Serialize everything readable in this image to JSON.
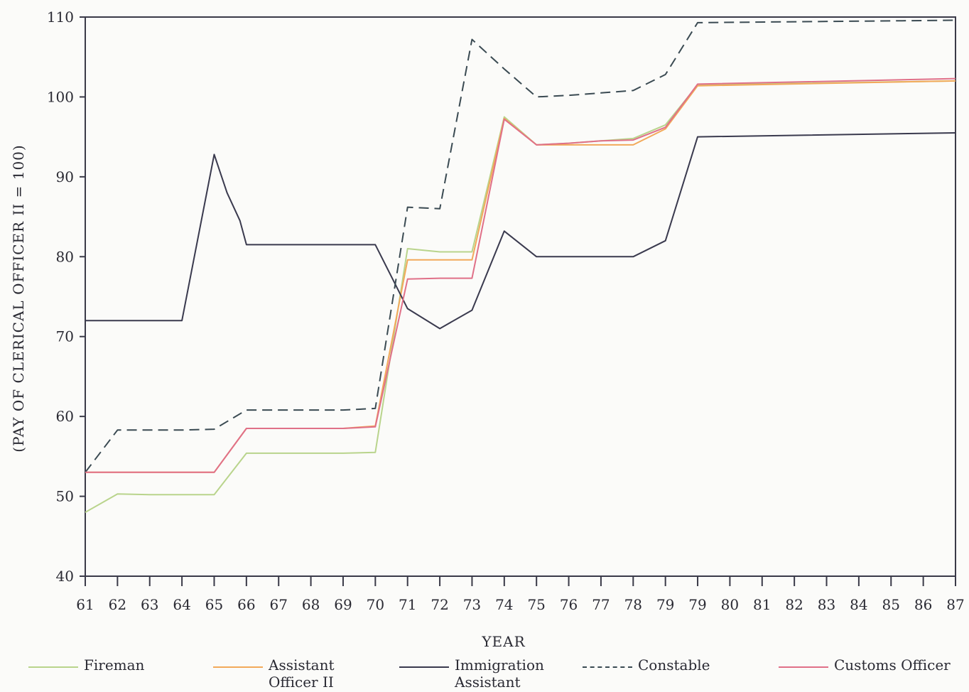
{
  "chart_data": {
    "type": "line",
    "title": "",
    "xlabel": "YEAR",
    "ylabel": "(PAY OF CLERICAL OFFICER II = 100)",
    "xlim": [
      61,
      87
    ],
    "ylim": [
      40,
      110
    ],
    "x_ticks": [
      "61",
      "62",
      "63",
      "64",
      "65",
      "66",
      "67",
      "68",
      "69",
      "70",
      "71",
      "72",
      "73",
      "74",
      "75",
      "76",
      "77",
      "78",
      "79",
      "79",
      "80",
      "81",
      "82",
      "83",
      "84",
      "85",
      "86",
      "87"
    ],
    "y_ticks": [
      40,
      50,
      60,
      70,
      80,
      90,
      100,
      110
    ],
    "grid": false,
    "legend_position": "bottom",
    "series": [
      {
        "name": "Fireman",
        "color": "#b9d48c",
        "style": "solid",
        "points": [
          [
            0,
            48
          ],
          [
            1,
            50.3
          ],
          [
            2,
            50.2
          ],
          [
            3,
            50.2
          ],
          [
            4,
            50.2
          ],
          [
            5,
            55.4
          ],
          [
            6,
            55.4
          ],
          [
            7,
            55.4
          ],
          [
            8,
            55.4
          ],
          [
            9,
            55.5
          ],
          [
            10,
            81
          ],
          [
            11,
            80.6
          ],
          [
            12,
            80.6
          ],
          [
            13,
            97.5
          ],
          [
            14,
            94
          ],
          [
            15,
            94.2
          ],
          [
            16,
            94.5
          ],
          [
            17,
            94.8
          ],
          [
            18,
            96.5
          ],
          [
            19,
            101.5
          ],
          [
            27,
            102
          ]
        ]
      },
      {
        "name": "Assistant Officer II",
        "color": "#f2a95a",
        "style": "solid",
        "points": [
          [
            0,
            53
          ],
          [
            1,
            53
          ],
          [
            2,
            53
          ],
          [
            3,
            53
          ],
          [
            4,
            53
          ],
          [
            5,
            58.5
          ],
          [
            6,
            58.5
          ],
          [
            7,
            58.5
          ],
          [
            8,
            58.5
          ],
          [
            9,
            58.8
          ],
          [
            10,
            79.6
          ],
          [
            11,
            79.6
          ],
          [
            12,
            79.6
          ],
          [
            13,
            97.3
          ],
          [
            14,
            94
          ],
          [
            15,
            94
          ],
          [
            16,
            94
          ],
          [
            17,
            94
          ],
          [
            18,
            96
          ],
          [
            19,
            101.4
          ],
          [
            27,
            102
          ]
        ]
      },
      {
        "name": "Immigration Assistant",
        "color": "#3a3a4e",
        "style": "solid",
        "points": [
          [
            0,
            72
          ],
          [
            1,
            72
          ],
          [
            2,
            72
          ],
          [
            3,
            72
          ],
          [
            4,
            92.8
          ],
          [
            4.4,
            88
          ],
          [
            4.8,
            84.5
          ],
          [
            5,
            81.5
          ],
          [
            6,
            81.5
          ],
          [
            7,
            81.5
          ],
          [
            8,
            81.5
          ],
          [
            9,
            81.5
          ],
          [
            10,
            73.5
          ],
          [
            11,
            71
          ],
          [
            12,
            73.3
          ],
          [
            13,
            83.2
          ],
          [
            14,
            80
          ],
          [
            15,
            80
          ],
          [
            16,
            80
          ],
          [
            17,
            80
          ],
          [
            18,
            82
          ],
          [
            19,
            95
          ],
          [
            27,
            95.5
          ]
        ]
      },
      {
        "name": "Constable",
        "color": "#3a4a52",
        "style": "dashed",
        "points": [
          [
            0,
            53
          ],
          [
            1,
            58.3
          ],
          [
            2,
            58.3
          ],
          [
            3,
            58.3
          ],
          [
            4,
            58.4
          ],
          [
            5,
            60.8
          ],
          [
            6,
            60.8
          ],
          [
            7,
            60.8
          ],
          [
            8,
            60.8
          ],
          [
            9,
            61
          ],
          [
            10,
            86.2
          ],
          [
            11,
            86
          ],
          [
            12,
            107.2
          ],
          [
            13,
            103.5
          ],
          [
            14,
            100
          ],
          [
            15,
            100.2
          ],
          [
            16,
            100.5
          ],
          [
            17,
            100.8
          ],
          [
            18,
            102.8
          ],
          [
            19,
            109.3
          ],
          [
            27,
            109.6
          ]
        ]
      },
      {
        "name": "Customs Officer",
        "color": "#e07088",
        "style": "solid",
        "points": [
          [
            0,
            53
          ],
          [
            1,
            53
          ],
          [
            2,
            53
          ],
          [
            3,
            53
          ],
          [
            4,
            53
          ],
          [
            5,
            58.5
          ],
          [
            6,
            58.5
          ],
          [
            7,
            58.5
          ],
          [
            8,
            58.5
          ],
          [
            9,
            58.7
          ],
          [
            10,
            77.2
          ],
          [
            11,
            77.3
          ],
          [
            12,
            77.3
          ],
          [
            13,
            97.2
          ],
          [
            14,
            94
          ],
          [
            15,
            94.2
          ],
          [
            16,
            94.5
          ],
          [
            17,
            94.6
          ],
          [
            18,
            96.2
          ],
          [
            19,
            101.6
          ],
          [
            27,
            102.3
          ]
        ]
      }
    ]
  }
}
